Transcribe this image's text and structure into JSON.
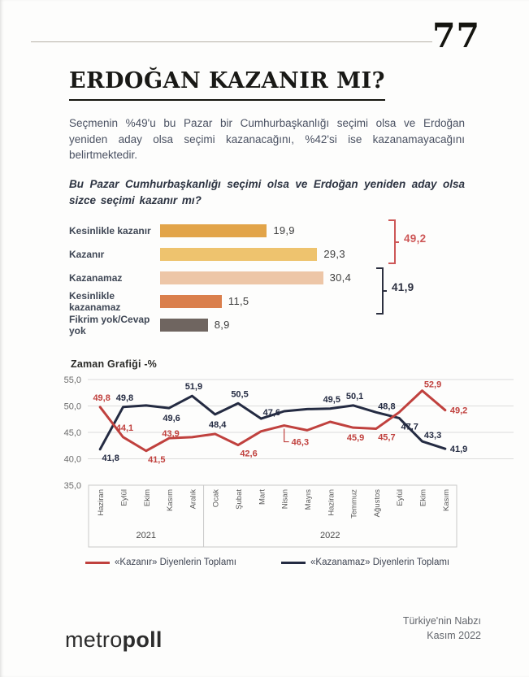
{
  "page": {
    "number": "77"
  },
  "title": "ERDOĞAN KAZANIR MI?",
  "intro": "Seçmenin %49'u bu Pazar bir Cumhurbaşkanlığı seçimi olsa ve Erdoğan yeniden aday olsa seçimi kazanacağını, %42'si ise kazanamayacağını belirtmektedir.",
  "question": "Bu Pazar Cumhurbaşkanlığı seçimi olsa ve Erdoğan yeniden aday olsa sizce seçimi kazanır mı?",
  "time_chart_label": "Zaman Grafiği -%",
  "chart_data": [
    {
      "type": "bar",
      "orientation": "horizontal",
      "categories": [
        "Kesinlikle kazanır",
        "Kazanır",
        "Kazanamaz",
        "Kesinlikle kazanamaz",
        "Fikrim yok/Cevap yok"
      ],
      "values": [
        19.9,
        29.3,
        30.4,
        11.5,
        8.9
      ],
      "value_labels": [
        "19,9",
        "29,3",
        "30,4",
        "11,5",
        "8,9"
      ],
      "bar_colors": [
        "#e2a449",
        "#eec36e",
        "#edc6a7",
        "#da7f4c",
        "#6f6560"
      ],
      "groups": [
        {
          "label": "49,2",
          "sum": 49.2,
          "rows": [
            0,
            1
          ],
          "color": "#cd5757"
        },
        {
          "label": "41,9",
          "sum": 41.9,
          "rows": [
            2,
            3
          ],
          "color": "#2c3040"
        }
      ]
    },
    {
      "type": "line",
      "title": "Zaman Grafiği -%",
      "ylim": [
        35,
        55
      ],
      "ytick_labels": [
        "55,0",
        "50,0",
        "45,0",
        "40,0",
        "35,0"
      ],
      "yticks": [
        55,
        50,
        45,
        40,
        35
      ],
      "grid": true,
      "months": [
        "Haziran",
        "Eylül",
        "Ekim",
        "Kasım",
        "Aralık",
        "Ocak",
        "Şubat",
        "Mart",
        "Nisan",
        "Mayıs",
        "Haziran",
        "Temmuz",
        "Ağustos",
        "Eylül",
        "Ekim",
        "Kasım"
      ],
      "year_groups": [
        {
          "label": "2021",
          "count": 5
        },
        {
          "label": "2022",
          "count": 11
        }
      ],
      "legend_position": "bottom",
      "series": [
        {
          "name": "«Kazanamaz» Diyenlerin Toplamı",
          "color": "#242b42",
          "values": [
            41.8,
            49.8,
            50.1,
            49.6,
            51.9,
            48.4,
            50.5,
            47.6,
            49.0,
            49.4,
            49.5,
            50.1,
            48.8,
            47.7,
            43.3,
            41.9
          ],
          "labels": [
            "41,8",
            "49,8",
            null,
            "49,6",
            "51,9",
            "48,4",
            "50,5",
            "47,6",
            null,
            null,
            "49,5",
            "50,1",
            "48,8",
            "47,7",
            "43,3",
            "41,9"
          ],
          "places": [
            "below-right",
            "above",
            null,
            "below",
            "above",
            "below",
            "above",
            "above-right",
            null,
            null,
            "above",
            "above",
            "above-right",
            "below-right",
            "above-right",
            "right"
          ]
        },
        {
          "name": "«Kazanır» Diyenlerin Toplamı",
          "color": "#c0413e",
          "values": [
            49.8,
            44.1,
            41.5,
            43.9,
            44.1,
            44.7,
            42.6,
            45.2,
            46.3,
            45.4,
            47.0,
            45.9,
            45.7,
            48.8,
            52.9,
            49.2
          ],
          "labels": [
            "49,8",
            "44,1",
            "41,5",
            "43,9",
            null,
            null,
            "42,6",
            null,
            "46,3",
            null,
            null,
            "45,9",
            "45,7",
            null,
            "52,9",
            "49,2"
          ],
          "places": [
            "above",
            "above",
            "below-right",
            "on-line",
            null,
            null,
            "below-right",
            null,
            "callout-below",
            null,
            null,
            "below",
            "below-right",
            null,
            "above-right",
            "right"
          ]
        }
      ]
    }
  ],
  "footer": {
    "brand_light": "metro",
    "brand_bold": "poll",
    "right_line1": "Türkiye'nin Nabzı",
    "right_line2": "Kasım 2022"
  }
}
